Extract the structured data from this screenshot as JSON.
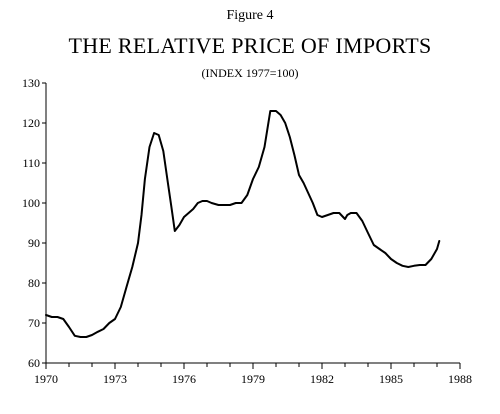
{
  "figure_label": "Figure 4",
  "chart_data": {
    "type": "line",
    "title": "THE RELATIVE PRICE OF IMPORTS",
    "subtitle": "(INDEX 1977=100)",
    "xlabel": "",
    "ylabel": "",
    "xlim": [
      1970,
      1988
    ],
    "ylim": [
      60,
      130
    ],
    "x_ticks": [
      "1970",
      "1973",
      "1976",
      "1979",
      "1982",
      "1985",
      "1988"
    ],
    "y_ticks": [
      "60",
      "70",
      "80",
      "90",
      "100",
      "110",
      "120",
      "130"
    ],
    "grid": false,
    "line_color": "#000000",
    "series": [
      {
        "x": [
          1970.0,
          1970.25,
          1970.5,
          1970.75,
          1971.0,
          1971.25,
          1971.5,
          1971.75,
          1972.0,
          1972.25,
          1972.5,
          1972.75,
          1973.0,
          1973.25,
          1973.5,
          1973.75,
          1974.0,
          1974.15,
          1974.3,
          1974.5,
          1974.7,
          1974.9,
          1975.1,
          1975.3,
          1975.45,
          1975.6,
          1975.8,
          1976.0,
          1976.2,
          1976.4,
          1976.6,
          1976.8,
          1977.0,
          1977.2,
          1977.5,
          1977.75,
          1978.0,
          1978.25,
          1978.5,
          1978.75,
          1979.0,
          1979.25,
          1979.5,
          1979.75,
          1980.0,
          1980.2,
          1980.4,
          1980.6,
          1980.8,
          1981.0,
          1981.2,
          1981.4,
          1981.6,
          1981.8,
          1982.0,
          1982.25,
          1982.5,
          1982.75,
          1983.0,
          1983.1,
          1983.25,
          1983.5,
          1983.75,
          1984.0,
          1984.25,
          1984.5,
          1984.75,
          1985.0,
          1985.25,
          1985.5,
          1985.75,
          1986.0,
          1986.25,
          1986.5,
          1986.75,
          1987.0,
          1987.1
        ],
        "y": [
          72,
          71.5,
          71.5,
          71,
          69,
          66.8,
          66.5,
          66.5,
          67,
          67.8,
          68.5,
          70,
          71,
          74,
          79,
          84,
          90,
          97,
          106,
          114,
          117.5,
          117,
          113,
          105,
          99,
          93,
          94.5,
          96.5,
          97.5,
          98.5,
          100,
          100.5,
          100.5,
          100,
          99.5,
          99.5,
          99.5,
          100,
          100,
          102,
          106,
          109,
          114,
          123,
          123,
          122,
          120,
          116.5,
          112,
          107,
          105,
          102.5,
          100,
          97,
          96.5,
          97,
          97.5,
          97.5,
          96,
          97,
          97.5,
          97.5,
          95.5,
          92.5,
          89.5,
          88.5,
          87.5,
          86,
          85,
          84.3,
          84,
          84.3,
          84.5,
          84.5,
          86,
          88.5,
          90.5
        ]
      }
    ]
  }
}
